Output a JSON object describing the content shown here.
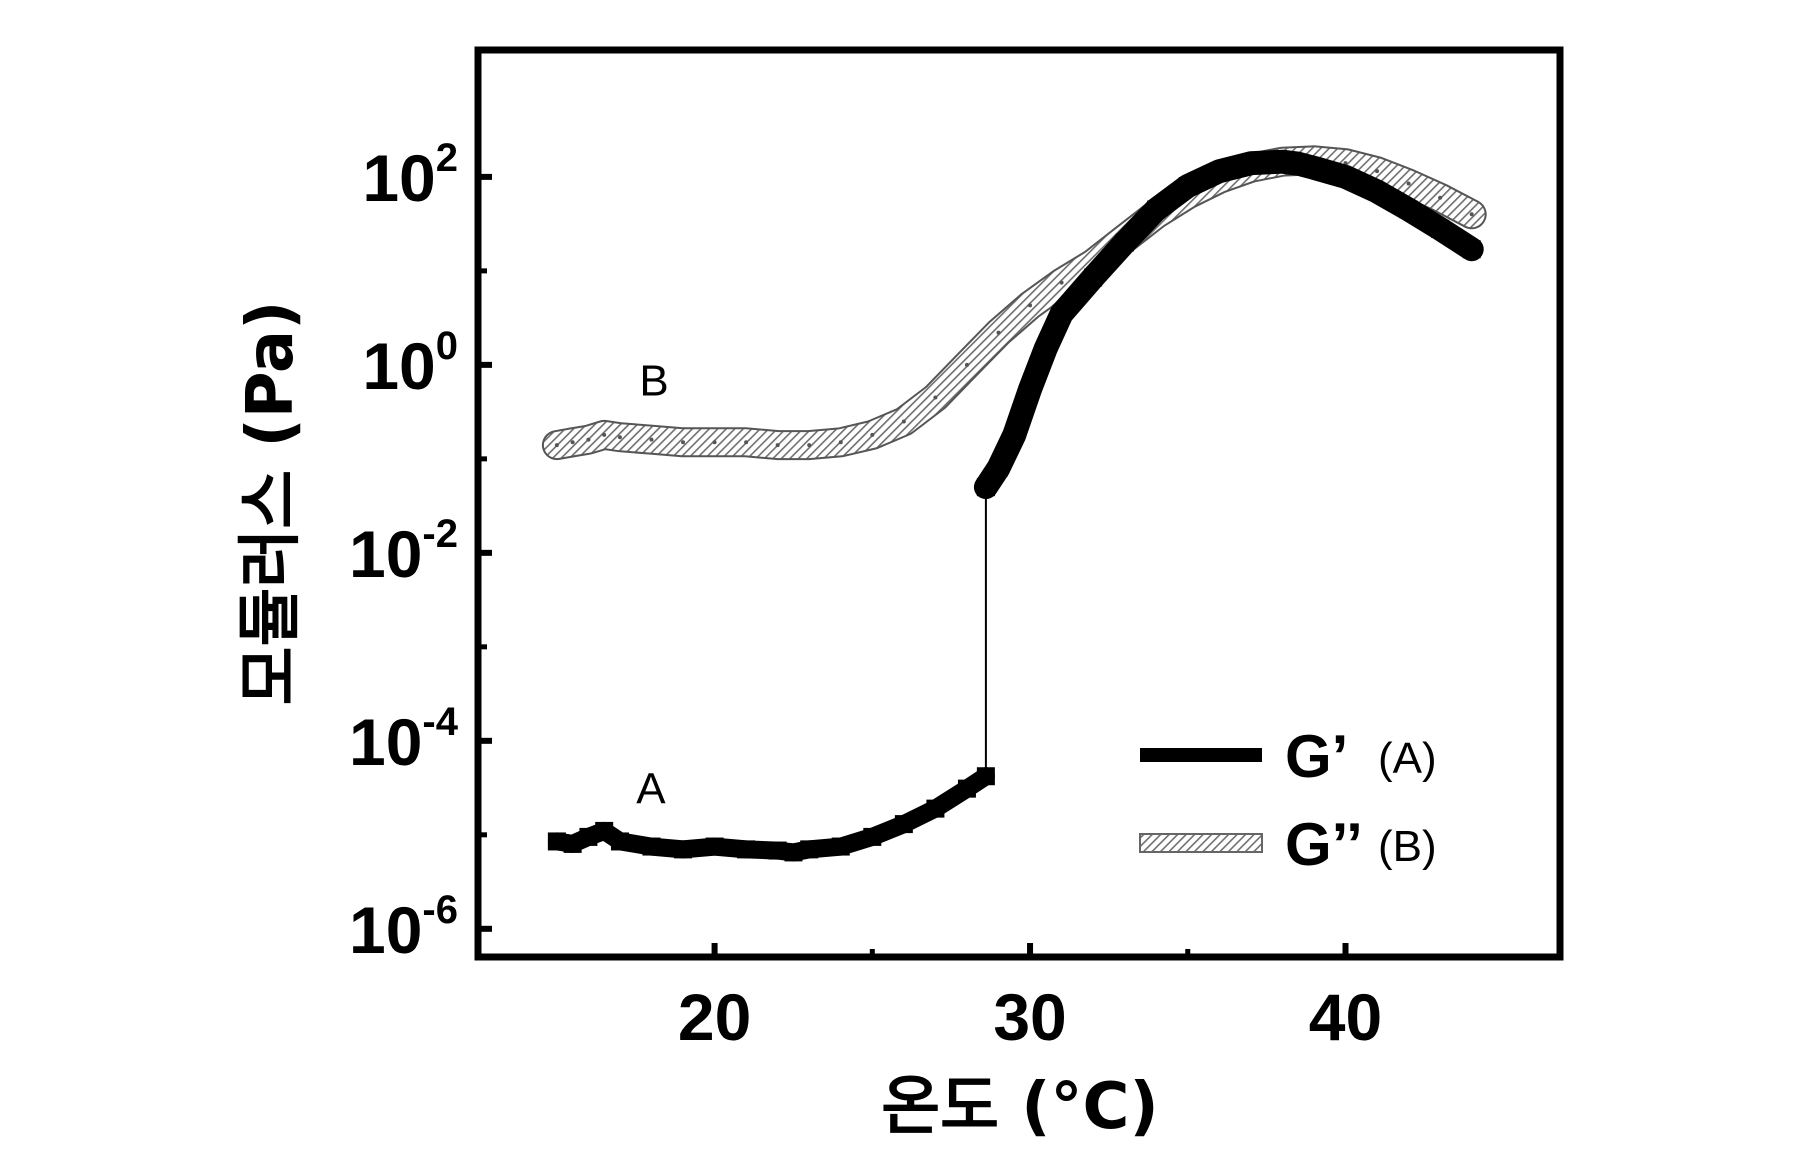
{
  "chart_data": {
    "type": "scatter",
    "xlabel": "온도 (°C)",
    "ylabel": "모듈러스 (Pa)",
    "xlim": [
      12.5,
      46.8
    ],
    "ylim_log10": [
      -6.3,
      3.35
    ],
    "y_scale": "log",
    "x_ticks": [
      20,
      30,
      40
    ],
    "x_tick_labels": [
      "20",
      "30",
      "40"
    ],
    "y_ticks": [
      1e-06,
      0.0001,
      0.01,
      1,
      100
    ],
    "y_tick_labels": [
      {
        "base": "10",
        "exp": "-6"
      },
      {
        "base": "10",
        "exp": "-4"
      },
      {
        "base": "10",
        "exp": "-2"
      },
      {
        "base": "10",
        "exp": "0"
      },
      {
        "base": "10",
        "exp": "2"
      }
    ],
    "grid": false,
    "legend_position": "bottom-right",
    "series": [
      {
        "name": "G’",
        "legend_suffix": "(A)",
        "color": "#000000",
        "style": "solid",
        "annotation": "A",
        "x": [
          15.0,
          15.5,
          16.0,
          16.5,
          17.0,
          18.0,
          19.0,
          20.0,
          21.0,
          22.0,
          22.5,
          23.0,
          24.0,
          25.0,
          26.0,
          27.0,
          28.0,
          28.6,
          28.6,
          29.0,
          29.5,
          30.0,
          30.5,
          31.0,
          32.0,
          33.0,
          34.0,
          35.0,
          36.0,
          37.0,
          38.0,
          38.5,
          39.0,
          40.0,
          41.0,
          42.0,
          43.0,
          44.0
        ],
        "y": [
          8.5e-06,
          8e-06,
          9.5e-06,
          1.1e-05,
          8.5e-06,
          7.5e-06,
          7e-06,
          7.5e-06,
          7e-06,
          6.8e-06,
          6.5e-06,
          7e-06,
          7.5e-06,
          9.5e-06,
          1.3e-05,
          1.9e-05,
          3.1e-05,
          4.2e-05,
          0.05,
          0.08,
          0.18,
          0.55,
          1.5,
          3.5,
          8.5,
          20.0,
          45.0,
          80.0,
          115.0,
          140.0,
          145.0,
          138.0,
          125.0,
          100.0,
          70.0,
          45.0,
          28.0,
          17.0
        ]
      },
      {
        "name": "G’’",
        "legend_suffix": "(B)",
        "color": "#8a8a8a",
        "style": "hatched",
        "annotation": "B",
        "x": [
          15.0,
          15.5,
          16.0,
          16.5,
          17.0,
          18.0,
          19.0,
          20.0,
          21.0,
          22.0,
          23.0,
          24.0,
          25.0,
          26.0,
          27.0,
          28.0,
          29.0,
          30.0,
          31.0,
          32.0,
          33.0,
          34.0,
          35.0,
          36.0,
          37.0,
          38.0,
          39.0,
          40.0,
          41.0,
          42.0,
          43.0,
          44.0
        ],
        "y": [
          0.14,
          0.15,
          0.16,
          0.18,
          0.17,
          0.16,
          0.15,
          0.15,
          0.15,
          0.14,
          0.14,
          0.15,
          0.18,
          0.25,
          0.45,
          1.0,
          2.2,
          4.3,
          7.5,
          12.0,
          22.0,
          40.0,
          65.0,
          95.0,
          125.0,
          145.0,
          150.0,
          140.0,
          115.0,
          85.0,
          60.0,
          40.0
        ]
      }
    ],
    "annotations": [
      {
        "text": "A",
        "x": 17.2,
        "y": 3.2e-05
      },
      {
        "text": "B",
        "x": 17.3,
        "y": 0.7
      }
    ]
  }
}
